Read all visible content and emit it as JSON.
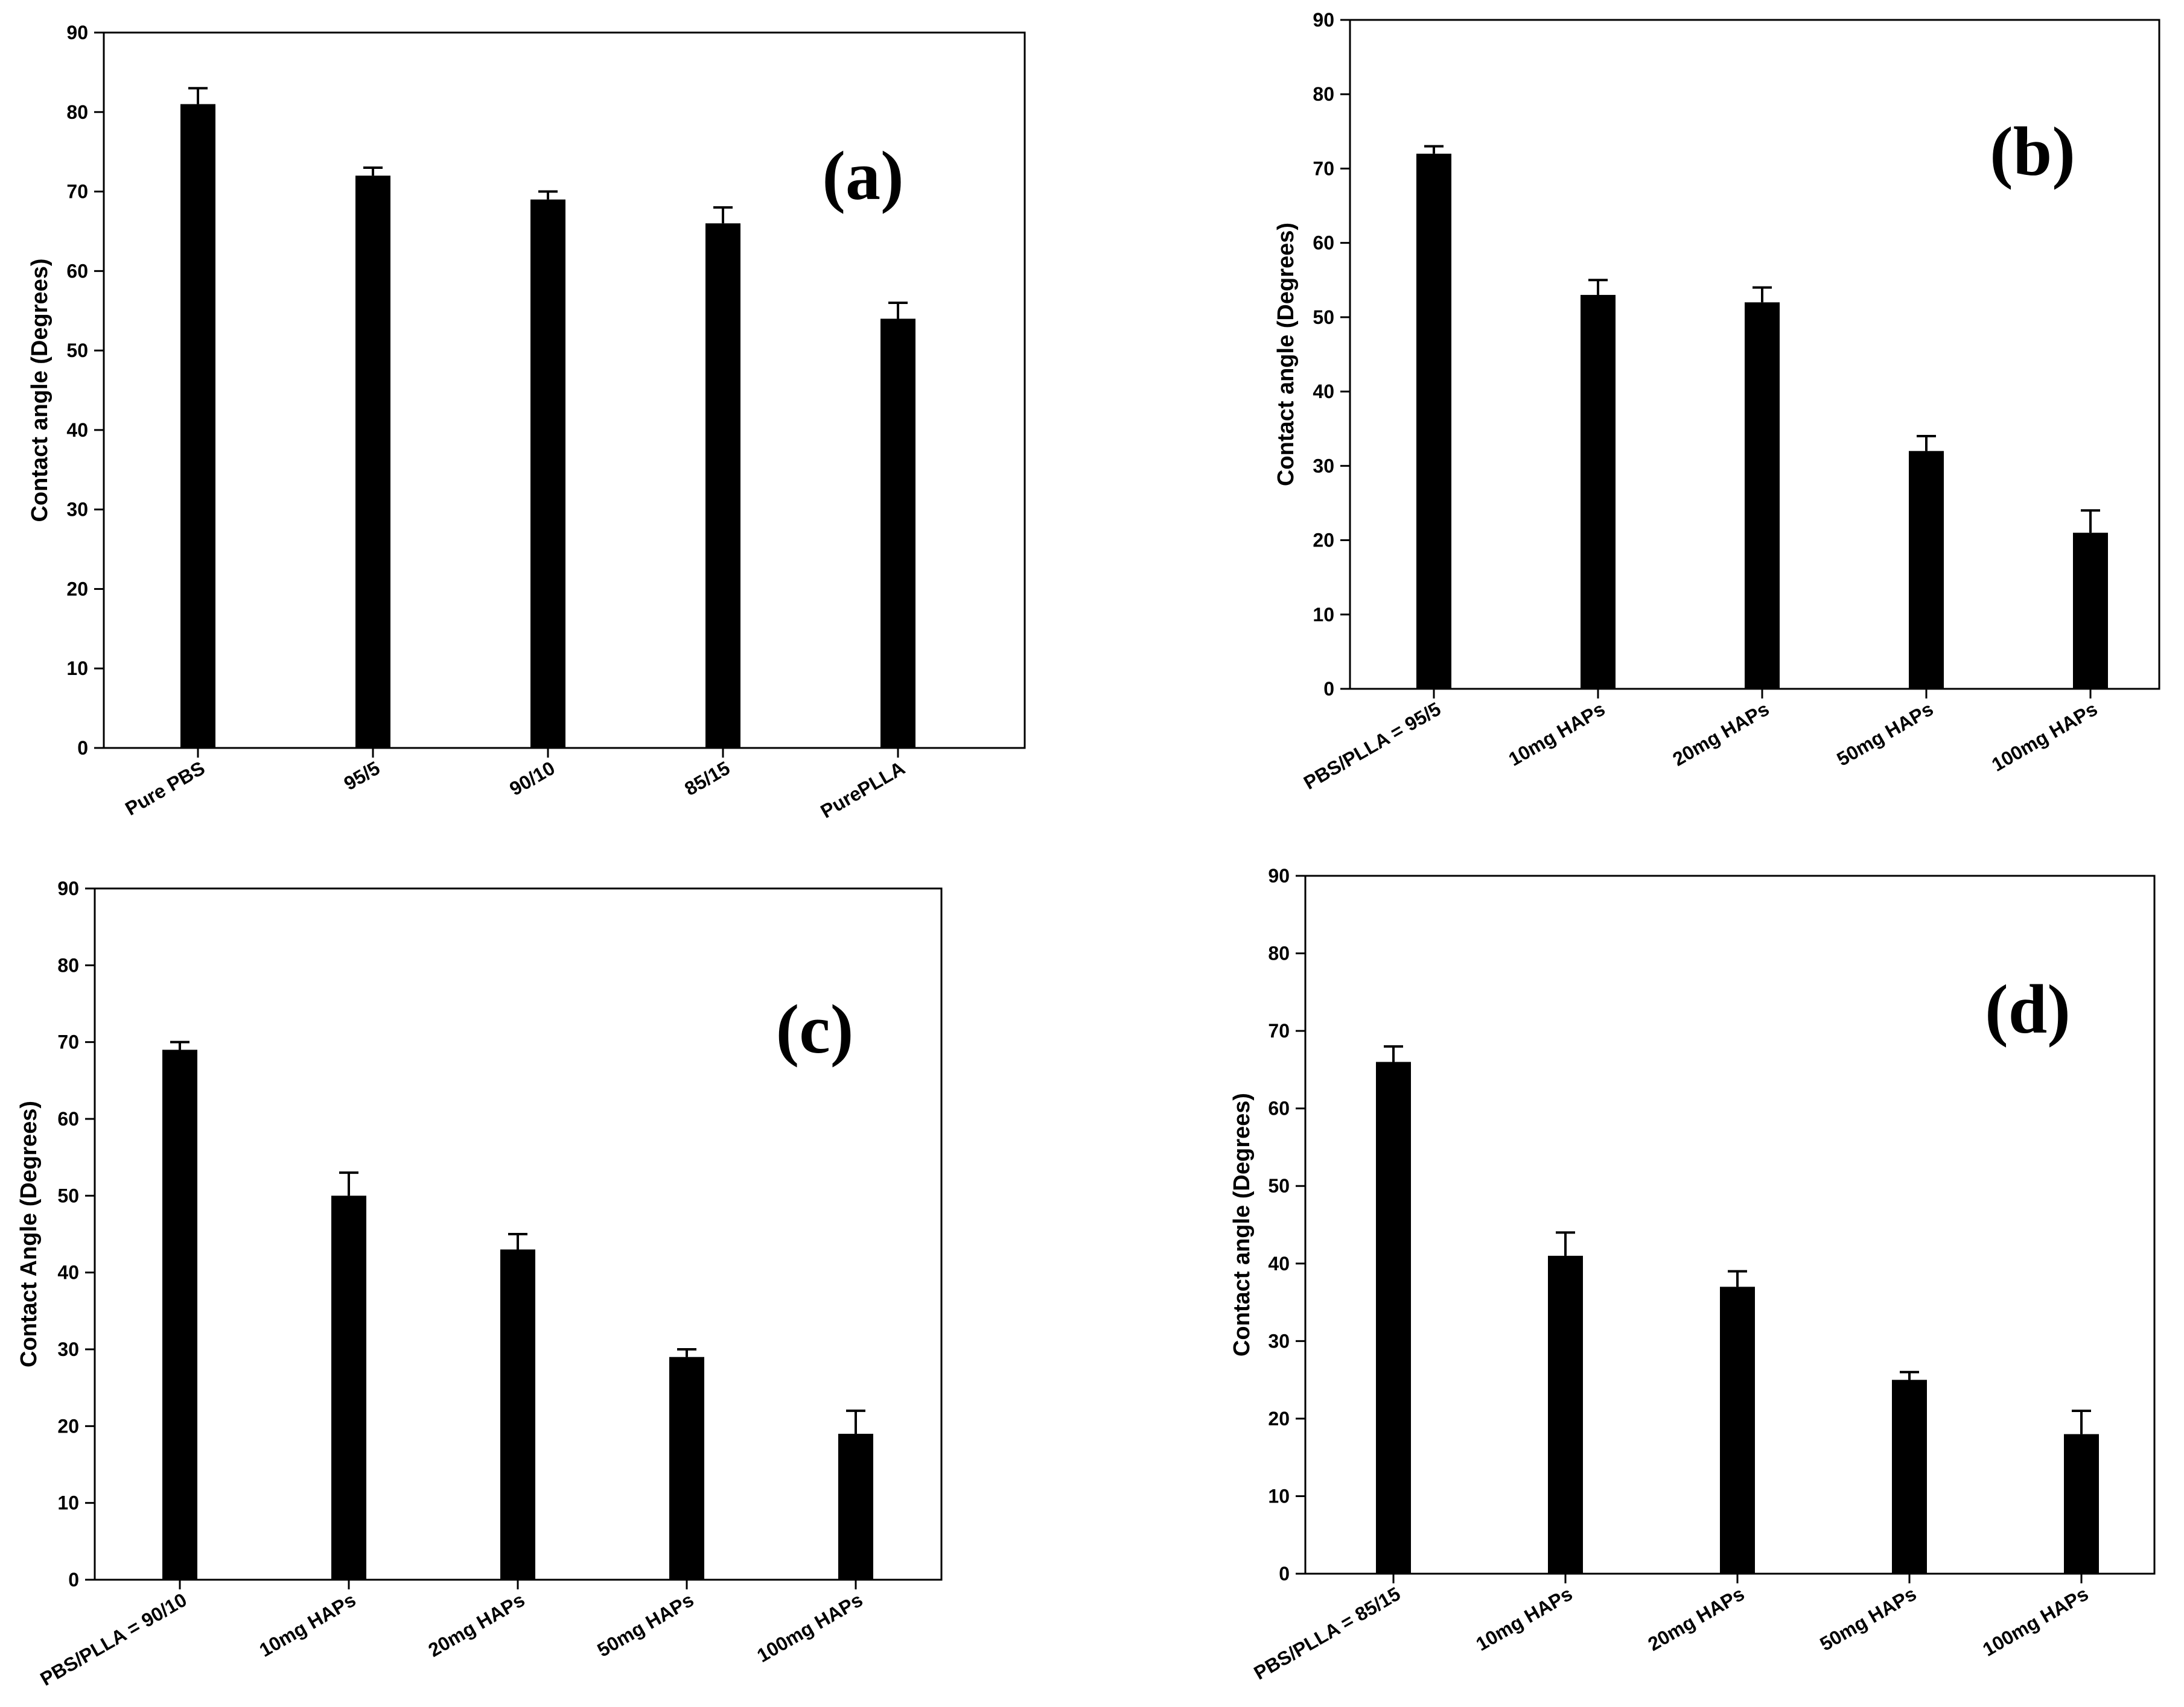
{
  "chart_data": [
    {
      "type": "bar",
      "panel_label": "(a)",
      "ylabel": "Contact angle (Degrees)",
      "xlabel": "",
      "ylim": [
        0,
        90
      ],
      "yticks": [
        "0",
        "10",
        "20",
        "30",
        "40",
        "50",
        "60",
        "70",
        "80",
        "90"
      ],
      "categories": [
        "Pure PBS",
        "95/5",
        "90/10",
        "85/15",
        "PurePLLA"
      ],
      "values": [
        81,
        72,
        69,
        66,
        54
      ],
      "errors": [
        2,
        1,
        1,
        2,
        2
      ]
    },
    {
      "type": "bar",
      "panel_label": "(b)",
      "ylabel": "Contact angle (Degrees)",
      "xlabel": "",
      "ylim": [
        0,
        90
      ],
      "yticks": [
        "0",
        "10",
        "20",
        "30",
        "40",
        "50",
        "60",
        "70",
        "80",
        "90"
      ],
      "categories": [
        "PBS/PLLA = 95/5",
        "10mg HAPs",
        "20mg HAPs",
        "50mg HAPs",
        "100mg HAPs"
      ],
      "values": [
        72,
        53,
        52,
        32,
        21
      ],
      "errors": [
        1,
        2,
        2,
        2,
        3
      ]
    },
    {
      "type": "bar",
      "panel_label": "(c)",
      "ylabel": "Contact Angle (Degrees)",
      "xlabel": "",
      "ylim": [
        0,
        90
      ],
      "yticks": [
        "0",
        "10",
        "20",
        "30",
        "40",
        "50",
        "60",
        "70",
        "80",
        "90"
      ],
      "categories": [
        "PBS/PLLA = 90/10",
        "10mg HAPs",
        "20mg HAPs",
        "50mg HAPs",
        "100mg HAPs"
      ],
      "values": [
        69,
        50,
        43,
        29,
        19
      ],
      "errors": [
        1,
        3,
        2,
        1,
        3
      ]
    },
    {
      "type": "bar",
      "panel_label": "(d)",
      "ylabel": "Contact angle (Degrees)",
      "xlabel": "",
      "ylim": [
        0,
        90
      ],
      "yticks": [
        "0",
        "10",
        "20",
        "30",
        "40",
        "50",
        "60",
        "70",
        "80",
        "90"
      ],
      "categories": [
        "PBS/PLLA = 85/15",
        "10mg HAPs",
        "20mg HAPs",
        "50mg HAPs",
        "100mg HAPs"
      ],
      "values": [
        66,
        41,
        37,
        25,
        18
      ],
      "errors": [
        2,
        3,
        2,
        1,
        3
      ]
    }
  ]
}
